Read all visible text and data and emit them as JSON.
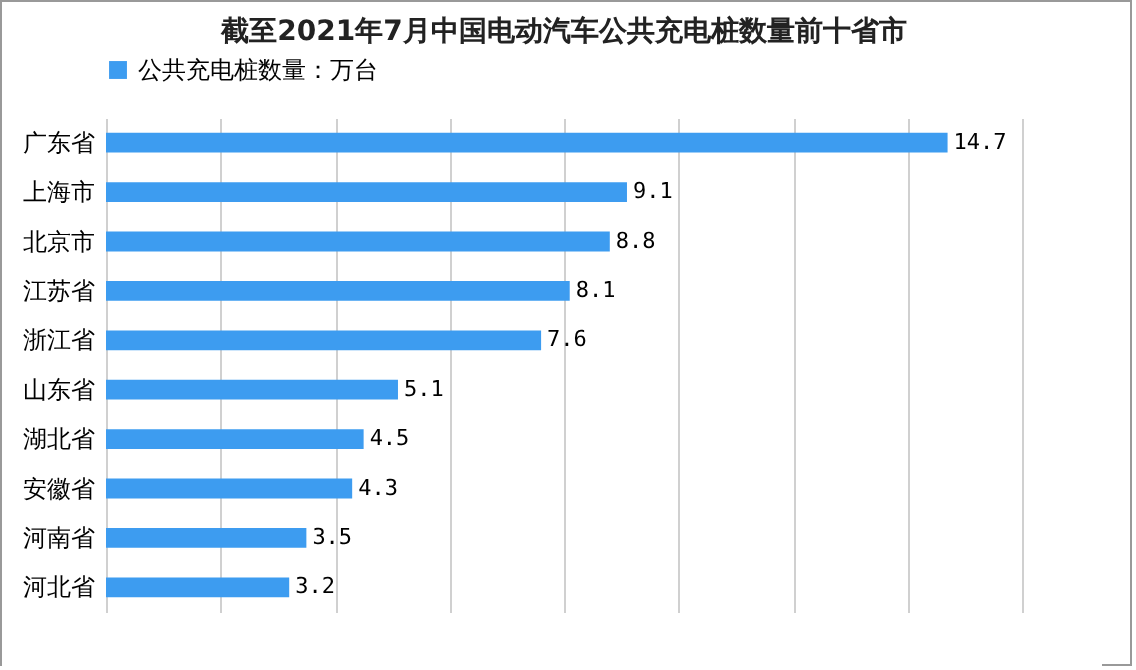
{
  "chart_data": {
    "type": "bar",
    "orientation": "horizontal",
    "title": "截至2021年7月中国电动汽车公共充电桩数量前十省市",
    "categories": [
      "广东省",
      "上海市",
      "北京市",
      "江苏省",
      "浙江省",
      "山东省",
      "湖北省",
      "安徽省",
      "河南省",
      "河北省"
    ],
    "series": [
      {
        "name": "公共充电桩数量：万台",
        "color": "#3d9cf0",
        "values": [
          14.7,
          9.1,
          8.8,
          8.1,
          7.6,
          5.1,
          4.5,
          4.3,
          3.5,
          3.2
        ]
      }
    ],
    "xlim": [
      0,
      16
    ],
    "xticks": [
      0,
      2,
      4,
      6,
      8,
      10,
      12,
      14,
      16
    ],
    "grid": "x",
    "tick_labels": "y",
    "data_labels": true,
    "legend": "top"
  }
}
